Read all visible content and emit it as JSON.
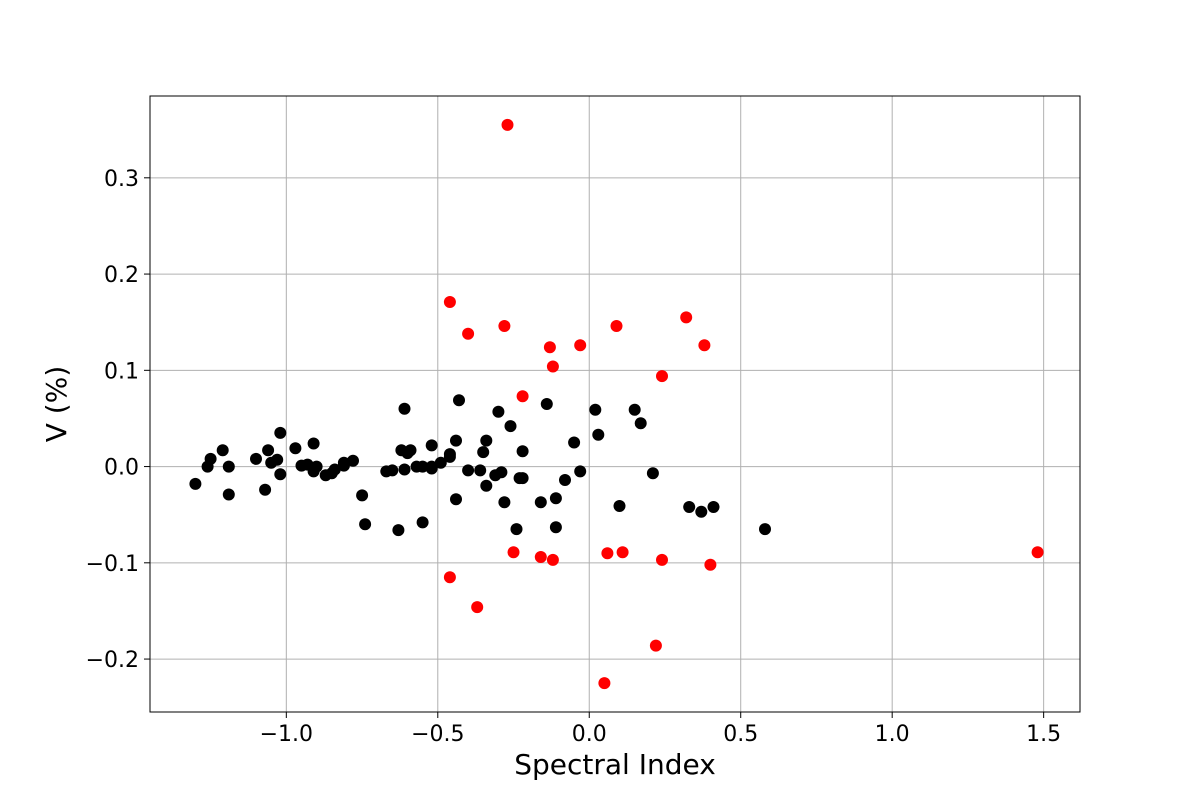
{
  "chart_data": {
    "type": "scatter",
    "title": "",
    "xlabel": "Spectral Index",
    "ylabel": "V (%)",
    "xlim": [
      -1.45,
      1.62
    ],
    "ylim": [
      -0.255,
      0.385
    ],
    "xticks": [
      {
        "value": -1.0,
        "label": "−1.0"
      },
      {
        "value": -0.5,
        "label": "−0.5"
      },
      {
        "value": 0.0,
        "label": "0.0"
      },
      {
        "value": 0.5,
        "label": "0.5"
      },
      {
        "value": 1.0,
        "label": "1.0"
      },
      {
        "value": 1.5,
        "label": "1.5"
      }
    ],
    "yticks": [
      {
        "value": -0.2,
        "label": "−0.2"
      },
      {
        "value": -0.1,
        "label": "−0.1"
      },
      {
        "value": 0.0,
        "label": "0.0"
      },
      {
        "value": 0.1,
        "label": "0.1"
      },
      {
        "value": 0.2,
        "label": "0.2"
      },
      {
        "value": 0.3,
        "label": "0.3"
      }
    ],
    "grid": true,
    "series": [
      {
        "color": "#000000",
        "points": [
          [
            -1.3,
            -0.018
          ],
          [
            -1.26,
            0.0
          ],
          [
            -1.25,
            0.008
          ],
          [
            -1.21,
            0.017
          ],
          [
            -1.19,
            0.0
          ],
          [
            -1.19,
            -0.029
          ],
          [
            -1.1,
            0.008
          ],
          [
            -1.07,
            -0.024
          ],
          [
            -1.06,
            0.017
          ],
          [
            -1.05,
            0.004
          ],
          [
            -1.03,
            0.007
          ],
          [
            -1.02,
            0.035
          ],
          [
            -1.02,
            -0.008
          ],
          [
            -0.97,
            0.019
          ],
          [
            -0.95,
            0.001
          ],
          [
            -0.93,
            0.002
          ],
          [
            -0.91,
            0.024
          ],
          [
            -0.91,
            -0.005
          ],
          [
            -0.9,
            0.0
          ],
          [
            -0.87,
            -0.009
          ],
          [
            -0.85,
            -0.007
          ],
          [
            -0.84,
            -0.003
          ],
          [
            -0.81,
            0.001
          ],
          [
            -0.81,
            0.004
          ],
          [
            -0.78,
            0.006
          ],
          [
            -0.75,
            -0.03
          ],
          [
            -0.74,
            -0.06
          ],
          [
            -0.67,
            -0.005
          ],
          [
            -0.65,
            -0.004
          ],
          [
            -0.63,
            -0.066
          ],
          [
            -0.62,
            0.017
          ],
          [
            -0.61,
            -0.003
          ],
          [
            -0.61,
            0.06
          ],
          [
            -0.6,
            0.014
          ],
          [
            -0.59,
            0.017
          ],
          [
            -0.57,
            0.0
          ],
          [
            -0.55,
            -0.058
          ],
          [
            -0.55,
            0.0
          ],
          [
            -0.52,
            -0.002
          ],
          [
            -0.52,
            0.0
          ],
          [
            -0.52,
            0.022
          ],
          [
            -0.49,
            0.004
          ],
          [
            -0.46,
            0.013
          ],
          [
            -0.46,
            0.01
          ],
          [
            -0.44,
            0.027
          ],
          [
            -0.44,
            -0.034
          ],
          [
            -0.43,
            0.069
          ],
          [
            -0.4,
            -0.004
          ],
          [
            -0.36,
            -0.004
          ],
          [
            -0.35,
            0.015
          ],
          [
            -0.34,
            0.027
          ],
          [
            -0.34,
            -0.02
          ],
          [
            -0.31,
            -0.009
          ],
          [
            -0.3,
            0.057
          ],
          [
            -0.29,
            -0.006
          ],
          [
            -0.28,
            -0.037
          ],
          [
            -0.26,
            0.042
          ],
          [
            -0.24,
            -0.065
          ],
          [
            -0.23,
            -0.012
          ],
          [
            -0.22,
            -0.012
          ],
          [
            -0.22,
            0.016
          ],
          [
            -0.16,
            -0.037
          ],
          [
            -0.14,
            0.065
          ],
          [
            -0.11,
            -0.033
          ],
          [
            -0.11,
            -0.063
          ],
          [
            -0.08,
            -0.014
          ],
          [
            -0.05,
            0.025
          ],
          [
            -0.03,
            -0.005
          ],
          [
            0.02,
            0.059
          ],
          [
            0.03,
            0.033
          ],
          [
            0.1,
            -0.041
          ],
          [
            0.15,
            0.059
          ],
          [
            0.17,
            0.045
          ],
          [
            0.21,
            -0.007
          ],
          [
            0.33,
            -0.042
          ],
          [
            0.37,
            -0.047
          ],
          [
            0.41,
            -0.042
          ],
          [
            0.58,
            -0.065
          ]
        ]
      },
      {
        "color": "#ff0000",
        "points": [
          [
            -0.46,
            0.171
          ],
          [
            -0.46,
            -0.115
          ],
          [
            -0.4,
            0.138
          ],
          [
            -0.37,
            -0.146
          ],
          [
            -0.27,
            0.355
          ],
          [
            -0.28,
            0.146
          ],
          [
            -0.25,
            -0.089
          ],
          [
            -0.22,
            0.073
          ],
          [
            -0.16,
            -0.094
          ],
          [
            -0.13,
            0.124
          ],
          [
            -0.12,
            0.104
          ],
          [
            -0.12,
            -0.097
          ],
          [
            -0.03,
            0.126
          ],
          [
            0.05,
            -0.225
          ],
          [
            0.06,
            -0.09
          ],
          [
            0.09,
            0.146
          ],
          [
            0.11,
            -0.089
          ],
          [
            0.22,
            -0.186
          ],
          [
            0.24,
            -0.097
          ],
          [
            0.24,
            0.094
          ],
          [
            0.32,
            0.155
          ],
          [
            0.38,
            0.126
          ],
          [
            0.4,
            -0.102
          ],
          [
            1.48,
            -0.089
          ]
        ]
      }
    ]
  }
}
